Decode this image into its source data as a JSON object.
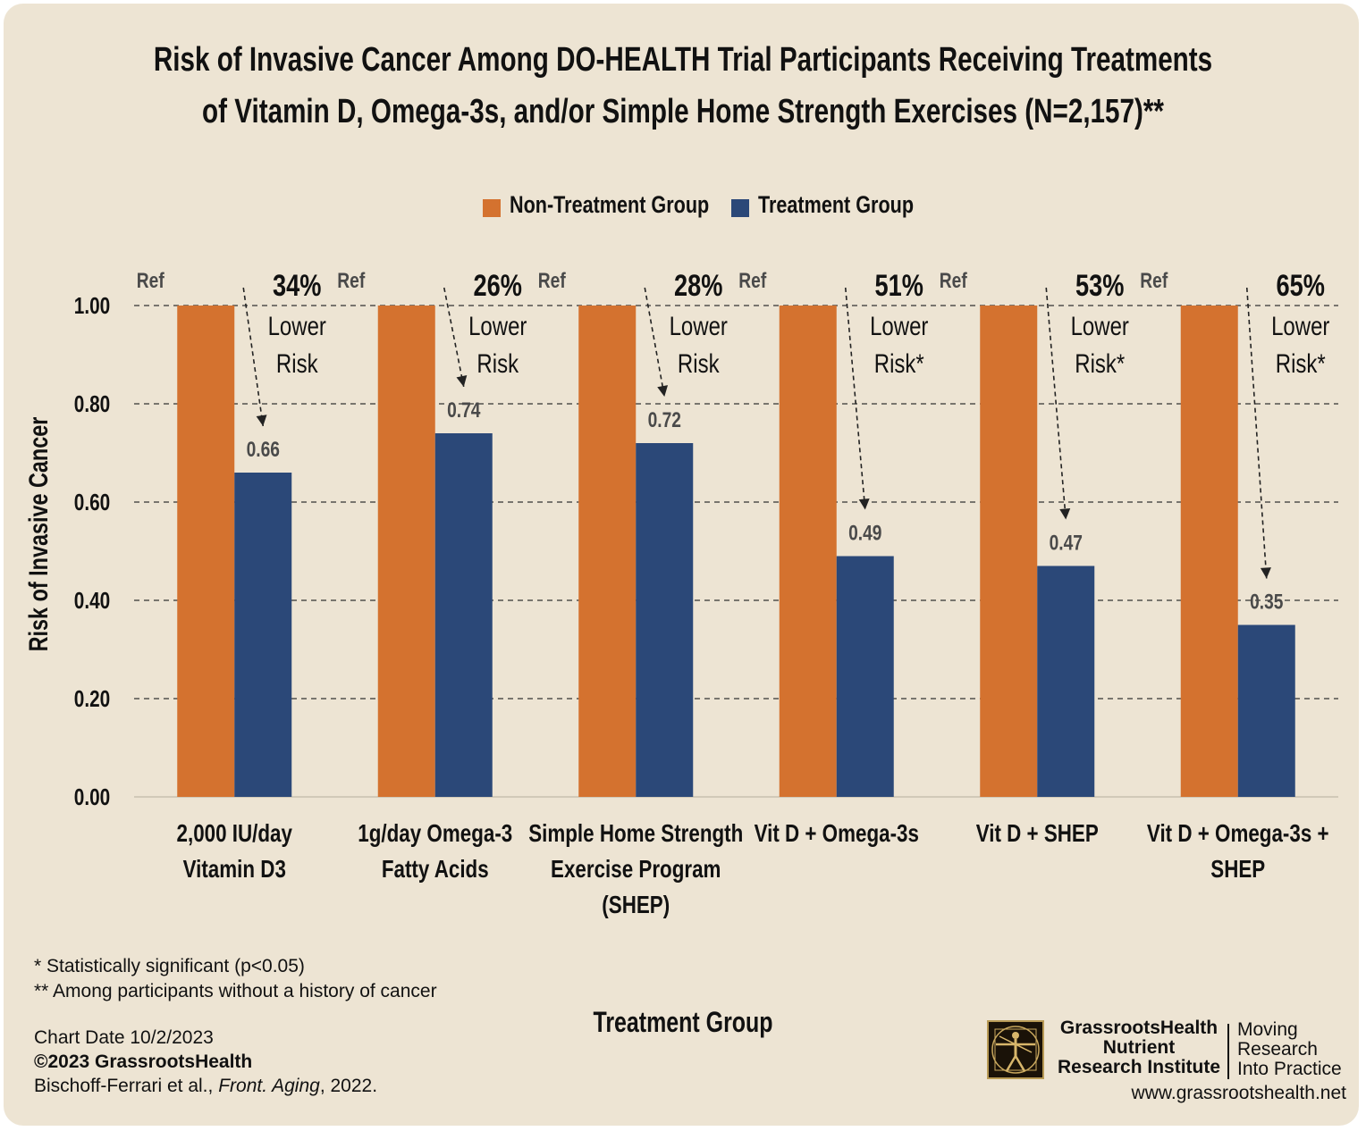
{
  "title_lines": [
    "Risk of Invasive Cancer Among DO-HEALTH Trial Participants Receiving Treatments",
    "of Vitamin D, Omega-3s, and/or Simple Home Strength Exercises (N=2,157)**"
  ],
  "colors": {
    "background": "#ede4d3",
    "non_treatment": "#d4722f",
    "treatment": "#2b4878",
    "text": "#111111",
    "value_label": "#4a4a4a"
  },
  "footnotes": [
    "* Statistically significant (p<0.05)",
    "** Among participants without a history of cancer"
  ],
  "credits": {
    "date": "Chart Date 10/2/2023",
    "copyright": "©2023 GrassrootsHealth",
    "citation_authors": "Bischoff-Ferrari et al., ",
    "citation_journal": "Front. Aging",
    "citation_year": ", 2022."
  },
  "branding": {
    "org_line1": "GrassrootsHealth",
    "org_line2": "Nutrient",
    "org_line3": "Research Institute",
    "tag_line1": "Moving",
    "tag_line2": "Research",
    "tag_line3": "Into Practice",
    "url": "www.grassrootshealth.net",
    "logo_icon": "vitruvian-man-logo"
  },
  "chart_data": {
    "type": "bar",
    "xlabel": "Treatment Group",
    "ylabel": "Risk of Invasive Cancer",
    "ylim": [
      0,
      1.0
    ],
    "yticks": [
      0.0,
      0.2,
      0.4,
      0.6,
      0.8,
      1.0
    ],
    "ytick_labels": [
      "0.00",
      "0.20",
      "0.40",
      "0.60",
      "0.80",
      "1.00"
    ],
    "grid": "dashed horizontal",
    "legend_position": "top",
    "categories": [
      [
        "2,000 IU/day",
        "Vitamin D3"
      ],
      [
        "1g/day Omega-3",
        "Fatty Acids"
      ],
      [
        "Simple Home Strength",
        "Exercise Program",
        "(SHEP)"
      ],
      [
        "Vit D + Omega-3s"
      ],
      [
        "Vit D + SHEP"
      ],
      [
        "Vit D + Omega-3s +",
        "SHEP"
      ]
    ],
    "series": [
      {
        "name": "Non-Treatment Group",
        "values": [
          1.0,
          1.0,
          1.0,
          1.0,
          1.0,
          1.0
        ],
        "labels": [
          "Ref",
          "Ref",
          "Ref",
          "Ref",
          "Ref",
          "Ref"
        ]
      },
      {
        "name": "Treatment Group",
        "values": [
          0.66,
          0.74,
          0.72,
          0.49,
          0.47,
          0.35
        ],
        "labels": [
          "0.66",
          "0.74",
          "0.72",
          "0.49",
          "0.47",
          "0.35"
        ]
      }
    ],
    "annotations": [
      {
        "pct": "34%",
        "line2": "Lower",
        "line3": "Risk"
      },
      {
        "pct": "26%",
        "line2": "Lower",
        "line3": "Risk"
      },
      {
        "pct": "28%",
        "line2": "Lower",
        "line3": "Risk"
      },
      {
        "pct": "51%",
        "line2": "Lower",
        "line3": "Risk*"
      },
      {
        "pct": "53%",
        "line2": "Lower",
        "line3": "Risk*"
      },
      {
        "pct": "65%",
        "line2": "Lower",
        "line3": "Risk*"
      }
    ]
  }
}
